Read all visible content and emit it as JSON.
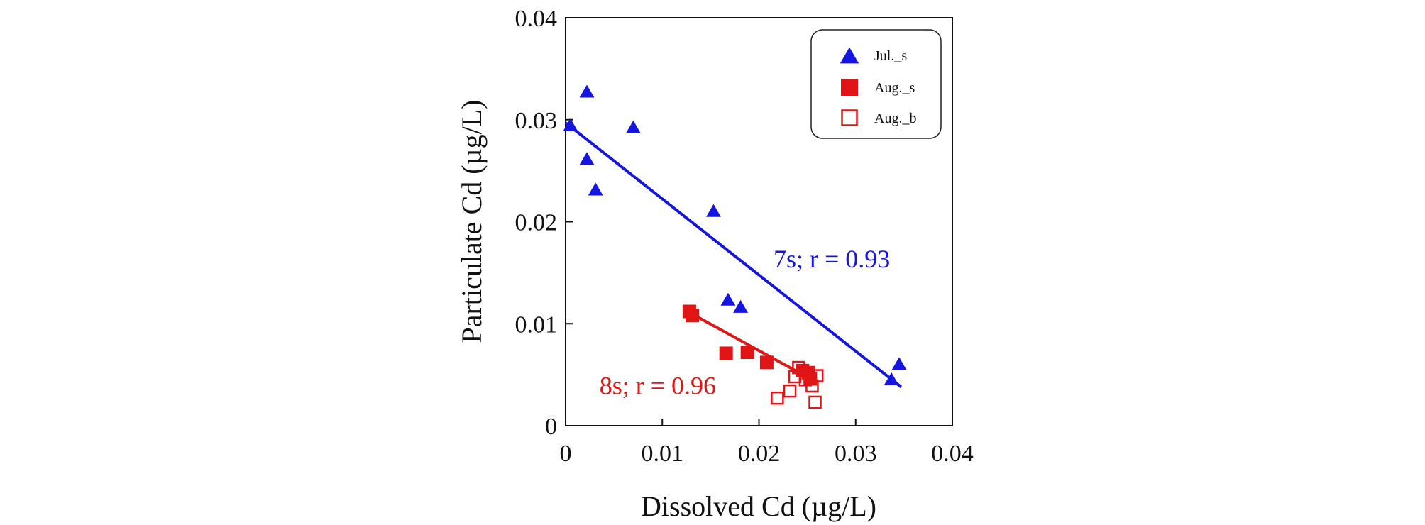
{
  "chart_data": {
    "type": "scatter",
    "xlabel": "Dissolved Cd (µg/L)",
    "ylabel": "Particulate Cd (µg/L)",
    "xlim": [
      0,
      0.04
    ],
    "ylim": [
      0,
      0.04
    ],
    "x_ticks": [
      "0",
      "0.01",
      "0.02",
      "0.03",
      "0.04"
    ],
    "y_ticks": [
      "0",
      "0.01",
      "0.02",
      "0.03",
      "0.04"
    ],
    "legend": {
      "position": "top-right",
      "entries": [
        "Jul._s",
        "Aug._s",
        "Aug._b"
      ]
    },
    "series": [
      {
        "name": "Jul._s",
        "marker": "filled-triangle",
        "color": "#1515e0",
        "points": [
          [
            0.0005,
            0.0295
          ],
          [
            0.0022,
            0.0328
          ],
          [
            0.0022,
            0.0262
          ],
          [
            0.0031,
            0.0232
          ],
          [
            0.007,
            0.0293
          ],
          [
            0.0153,
            0.0211
          ],
          [
            0.0168,
            0.0124
          ],
          [
            0.0181,
            0.0117
          ],
          [
            0.0337,
            0.0046
          ],
          [
            0.0345,
            0.0061
          ]
        ]
      },
      {
        "name": "Aug._s",
        "marker": "filled-square",
        "color": "#e01515",
        "points": [
          [
            0.0128,
            0.0112
          ],
          [
            0.0131,
            0.0108
          ],
          [
            0.0166,
            0.0071
          ],
          [
            0.0188,
            0.0072
          ],
          [
            0.0208,
            0.0062
          ],
          [
            0.0245,
            0.0054
          ],
          [
            0.0251,
            0.0052
          ],
          [
            0.0253,
            0.0046
          ]
        ]
      },
      {
        "name": "Aug._b",
        "marker": "open-square",
        "color": "#e01515",
        "points": [
          [
            0.0219,
            0.0027
          ],
          [
            0.0232,
            0.0034
          ],
          [
            0.0237,
            0.0048
          ],
          [
            0.0241,
            0.0057
          ],
          [
            0.0248,
            0.0045
          ],
          [
            0.0255,
            0.0039
          ],
          [
            0.0258,
            0.0023
          ],
          [
            0.026,
            0.0049
          ]
        ]
      }
    ],
    "trendlines": [
      {
        "series": "Jul._s",
        "color": "#1515e0",
        "from": [
          0.0,
          0.0297
        ],
        "to": [
          0.0347,
          0.0038
        ]
      },
      {
        "series": "Aug._s",
        "color": "#e01515",
        "from": [
          0.0128,
          0.0111
        ],
        "to": [
          0.0255,
          0.0045
        ]
      }
    ],
    "annotations": [
      {
        "text": "7s; r = 0.93",
        "color": "#1515e0",
        "at": [
          0.0215,
          0.0155
        ]
      },
      {
        "text": "8s; r = 0.96",
        "color": "#e01515",
        "at": [
          0.0035,
          0.0031
        ]
      }
    ]
  }
}
